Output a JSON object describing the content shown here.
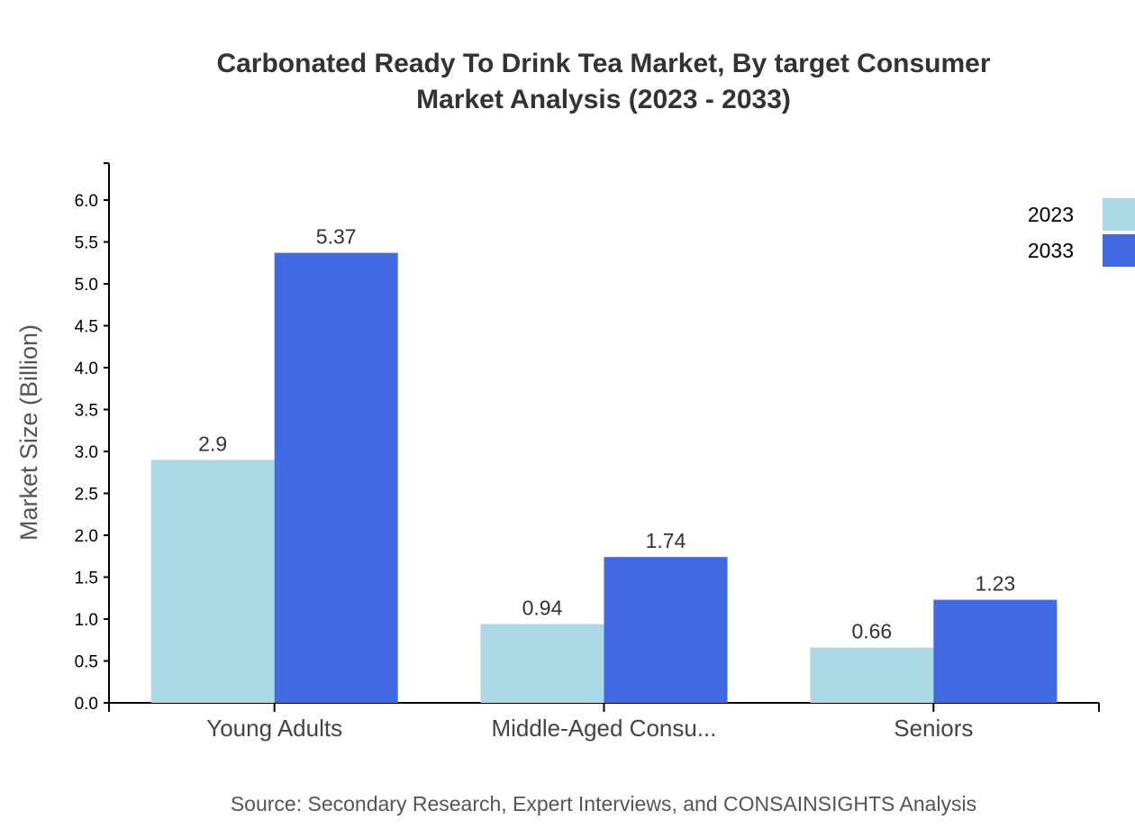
{
  "chart_data": {
    "type": "bar",
    "title": [
      "Carbonated Ready To Drink Tea Market, By target Consumer",
      "Market Analysis (2023 - 2033)"
    ],
    "ylabel": "Market Size (Billion)",
    "xlabel": "",
    "source": "Source: Secondary Research, Expert Interviews, and CONSAINSIGHTS Analysis",
    "categories": [
      "Young Adults",
      "Middle-Aged Consu...",
      "Seniors"
    ],
    "series": [
      {
        "name": "2023",
        "color": "#add8e6",
        "values": [
          2.9,
          0.94,
          0.66
        ]
      },
      {
        "name": "2033",
        "color": "#4169e1",
        "values": [
          5.37,
          1.74,
          1.23
        ]
      }
    ],
    "ylim": [
      0,
      6.44
    ],
    "yticks": [
      "0.0",
      "0.5",
      "1.0",
      "1.5",
      "2.0",
      "2.5",
      "3.0",
      "3.5",
      "4.0",
      "4.5",
      "5.0",
      "5.5",
      "6.0"
    ],
    "grid": false,
    "legend": "top-right"
  }
}
